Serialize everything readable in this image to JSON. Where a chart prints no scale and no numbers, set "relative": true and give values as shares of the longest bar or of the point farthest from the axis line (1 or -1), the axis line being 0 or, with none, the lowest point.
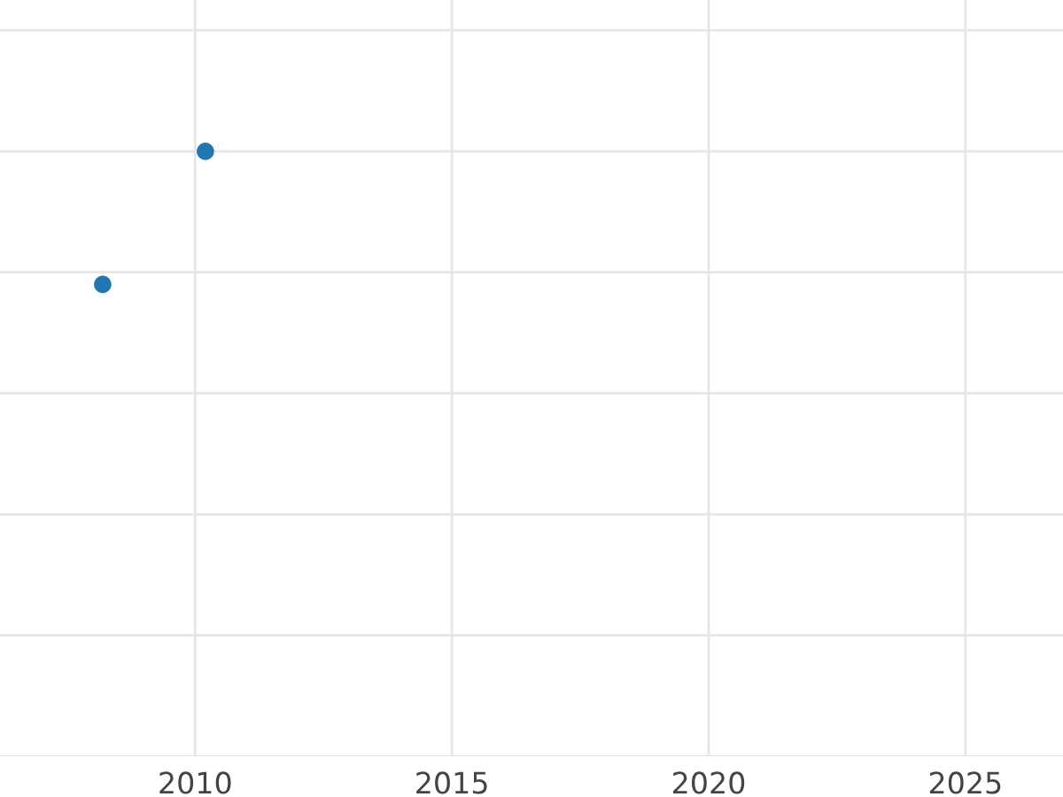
{
  "chart_data": {
    "type": "scatter",
    "relative": true,
    "x": [
      2008.2,
      2010.2
    ],
    "series": [
      {
        "color": "#1f77b4",
        "values": [
          0.78,
          1
        ]
      }
    ],
    "xlim": [
      2006.2,
      2026.9
    ],
    "xticks": [
      2010,
      2015,
      2020,
      2025
    ],
    "tick_labels": "x",
    "grid": true,
    "marker": "circle"
  }
}
